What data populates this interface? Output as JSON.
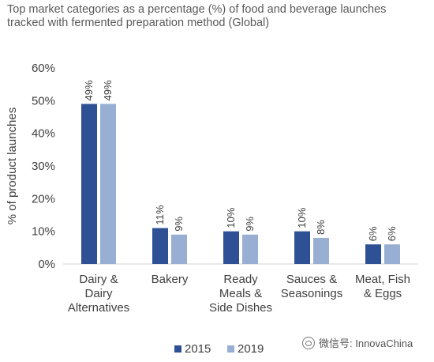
{
  "chart_data": {
    "type": "bar",
    "title": "Top market categories as a percentage (%) of food and beverage launches tracked with fermented preparation method (Global)",
    "xlabel": "",
    "ylabel": "% of product launches",
    "ylim": [
      0,
      60
    ],
    "yticks": [
      "0%",
      "10%",
      "20%",
      "30%",
      "40%",
      "50%",
      "60%"
    ],
    "ytick_values": [
      0,
      10,
      20,
      30,
      40,
      50,
      60
    ],
    "grid": false,
    "legend_position": "bottom",
    "categories": [
      [
        "Dairy &",
        "Dairy",
        "Alternatives"
      ],
      [
        "Bakery"
      ],
      [
        "Ready",
        "Meals &",
        "Side Dishes"
      ],
      [
        "Sauces &",
        "Seasonings"
      ],
      [
        "Meat, Fish",
        "& Eggs"
      ]
    ],
    "series": [
      {
        "name": "2015",
        "color": "#2e5196",
        "values": [
          49,
          11,
          10,
          10,
          6
        ],
        "labels": [
          "49%",
          "11%",
          "10%",
          "10%",
          "6%"
        ]
      },
      {
        "name": "2019",
        "color": "#98aed3",
        "values": [
          49,
          9,
          9,
          8,
          6
        ],
        "labels": [
          "49%",
          "9%",
          "9%",
          "8%",
          "6%"
        ]
      }
    ]
  },
  "watermark": {
    "text": "微信号: InnovaChina",
    "icon": "wechat-icon"
  }
}
